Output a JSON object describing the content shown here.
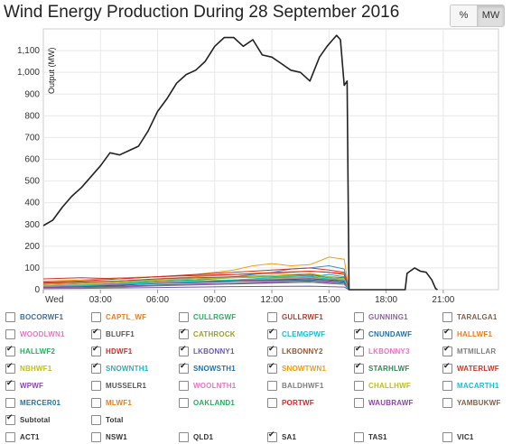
{
  "title": "Wind Energy Production During 28 September 2016",
  "toggle": {
    "percent_label": "%",
    "mw_label": "MW",
    "active": "MW"
  },
  "chart_data": {
    "type": "line",
    "ylabel": "Output (MW)",
    "y_ticks": [
      "0",
      "100",
      "200",
      "300",
      "400",
      "500",
      "600",
      "700",
      "800",
      "900",
      "1,000",
      "1,100"
    ],
    "x_ticks": [
      "Wed",
      "03:00",
      "06:00",
      "09:00",
      "12:00",
      "15:00",
      "18:00",
      "21:00"
    ],
    "x_unit": "hours since 00:00",
    "xlim": [
      0,
      23.9
    ],
    "ylim": [
      0,
      1200
    ],
    "grid": true,
    "series": [
      {
        "name": "Subtotal",
        "color": "#222222",
        "x": [
          0,
          0.5,
          1,
          1.5,
          2,
          2.5,
          3,
          3.5,
          4,
          4.5,
          5,
          5.5,
          6,
          6.5,
          7,
          7.5,
          8,
          8.5,
          9,
          9.5,
          10,
          10.5,
          11,
          11.5,
          12,
          12.5,
          13,
          13.5,
          14,
          14.5,
          14.9,
          15.2,
          15.4,
          15.6,
          15.8,
          15.95,
          16.05,
          19.0,
          19.1,
          19.5,
          19.8,
          20.1,
          20.4,
          20.6,
          20.7
        ],
        "y": [
          295,
          320,
          380,
          430,
          470,
          520,
          570,
          630,
          620,
          640,
          660,
          730,
          820,
          880,
          950,
          990,
          1010,
          1050,
          1120,
          1160,
          1160,
          1120,
          1150,
          1080,
          1070,
          1040,
          1010,
          1000,
          960,
          1070,
          1120,
          1150,
          1170,
          1150,
          940,
          960,
          0,
          0,
          75,
          100,
          85,
          80,
          45,
          5,
          0
        ]
      },
      {
        "name": "SNOWTWN1",
        "color": "#f39c12",
        "x": [
          0,
          2,
          4,
          6,
          8,
          9,
          10,
          11,
          12,
          13,
          14,
          15,
          15.8,
          16.05
        ],
        "y": [
          40,
          45,
          55,
          60,
          70,
          80,
          90,
          110,
          120,
          110,
          115,
          150,
          140,
          0
        ]
      },
      {
        "name": "SNOWSTH1",
        "color": "#3a8fd4",
        "x": [
          0,
          2,
          4,
          6,
          8,
          10,
          12,
          13,
          14,
          15,
          15.8,
          16.05
        ],
        "y": [
          30,
          35,
          40,
          45,
          50,
          60,
          80,
          95,
          100,
          110,
          95,
          0
        ]
      },
      {
        "name": "SNOWNTH1",
        "color": "#1ab3c5",
        "x": [
          0,
          2,
          4,
          6,
          8,
          10,
          12,
          14,
          15,
          15.8,
          16.05
        ],
        "y": [
          20,
          25,
          30,
          35,
          40,
          45,
          55,
          60,
          70,
          60,
          0
        ]
      },
      {
        "name": "WATERLWF",
        "color": "#c0392b",
        "x": [
          0,
          2,
          4,
          6,
          8,
          10,
          12,
          14,
          15,
          15.8,
          16.05
        ],
        "y": [
          50,
          55,
          50,
          60,
          70,
          80,
          90,
          100,
          90,
          80,
          0
        ]
      },
      {
        "name": "HALLWF1",
        "color": "#e67e22",
        "x": [
          0,
          2,
          4,
          6,
          8,
          10,
          12,
          14,
          15,
          15.8,
          16.05
        ],
        "y": [
          25,
          30,
          40,
          50,
          60,
          70,
          80,
          85,
          80,
          75,
          0
        ]
      },
      {
        "name": "HALLWF2",
        "color": "#27ae60",
        "x": [
          0,
          2,
          4,
          6,
          8,
          10,
          12,
          14,
          15,
          15.8,
          16.05
        ],
        "y": [
          20,
          25,
          30,
          40,
          45,
          55,
          60,
          65,
          55,
          50,
          0
        ]
      },
      {
        "name": "CATHROCK",
        "color": "#b5a03a",
        "x": [
          0,
          2,
          4,
          6,
          8,
          10,
          12,
          14,
          15,
          15.8,
          16.05
        ],
        "y": [
          15,
          20,
          25,
          35,
          40,
          45,
          50,
          55,
          50,
          40,
          0
        ]
      },
      {
        "name": "HDWF1",
        "color": "#d62728",
        "x": [
          0,
          2,
          4,
          6,
          8,
          10,
          12,
          14,
          15,
          15.8,
          16.05
        ],
        "y": [
          35,
          40,
          50,
          60,
          65,
          70,
          75,
          85,
          80,
          70,
          0
        ]
      },
      {
        "name": "CNUNDAWF",
        "color": "#2471a3",
        "x": [
          0,
          2,
          4,
          6,
          8,
          10,
          12,
          14,
          15,
          15.8,
          16.05
        ],
        "y": [
          15,
          18,
          22,
          28,
          32,
          38,
          42,
          45,
          40,
          35,
          0
        ]
      },
      {
        "name": "LKBONNY2",
        "color": "#8e5a3c",
        "x": [
          0,
          2,
          4,
          6,
          8,
          10,
          12,
          14,
          15,
          15.8,
          16.05
        ],
        "y": [
          30,
          35,
          40,
          50,
          55,
          60,
          65,
          70,
          60,
          55,
          0
        ]
      },
      {
        "name": "LKBONNY3",
        "color": "#e377c2",
        "x": [
          0,
          2,
          4,
          6,
          8,
          10,
          12,
          14,
          15,
          15.8,
          16.05
        ],
        "y": [
          20,
          22,
          28,
          32,
          38,
          42,
          48,
          52,
          45,
          40,
          0
        ]
      },
      {
        "name": "LKBONNY1",
        "color": "#6c5ca8",
        "x": [
          0,
          2,
          4,
          6,
          8,
          10,
          12,
          14,
          15,
          15.8,
          16.05
        ],
        "y": [
          5,
          6,
          8,
          10,
          12,
          14,
          15,
          16,
          14,
          12,
          0
        ]
      },
      {
        "name": "STARHLWF",
        "color": "#2e8b57",
        "x": [
          0,
          2,
          4,
          6,
          8,
          10,
          12,
          14,
          15,
          15.8,
          16.05
        ],
        "y": [
          10,
          12,
          15,
          20,
          25,
          28,
          32,
          35,
          30,
          25,
          0
        ]
      },
      {
        "name": "BLUFF1",
        "color": "#555555",
        "x": [
          0,
          2,
          4,
          6,
          8,
          10,
          12,
          14,
          15,
          15.8,
          16.05
        ],
        "y": [
          10,
          15,
          20,
          30,
          35,
          40,
          45,
          50,
          45,
          40,
          0
        ]
      },
      {
        "name": "NBHWF1",
        "color": "#bcbd22",
        "x": [
          0,
          2,
          4,
          6,
          8,
          10,
          12,
          14,
          15,
          15.8,
          16.05
        ],
        "y": [
          20,
          25,
          35,
          45,
          50,
          55,
          65,
          75,
          60,
          50,
          0
        ]
      },
      {
        "name": "WPWF",
        "color": "#8e44ad",
        "x": [
          0,
          2,
          4,
          6,
          8,
          10,
          12,
          14,
          15,
          15.8,
          16.05
        ],
        "y": [
          10,
          12,
          16,
          22,
          26,
          30,
          36,
          40,
          35,
          30,
          0
        ]
      },
      {
        "name": "MTMILLAR",
        "color": "#7f7f7f",
        "x": [
          0,
          2,
          4,
          6,
          8,
          10,
          12,
          14,
          15,
          15.8,
          16.05
        ],
        "y": [
          5,
          8,
          12,
          18,
          22,
          26,
          30,
          34,
          28,
          25,
          0
        ]
      },
      {
        "name": "CLEMGPWF",
        "color": "#17becf",
        "x": [
          0,
          2,
          4,
          6,
          8,
          10,
          12,
          14,
          15,
          15.8,
          16.05
        ],
        "y": [
          15,
          18,
          25,
          30,
          36,
          45,
          55,
          60,
          50,
          45,
          0
        ]
      }
    ]
  },
  "legend_rows": [
    [
      {
        "label": "BOCORWF1",
        "color": "#3a6ea5",
        "checked": false
      },
      {
        "label": "CAPTL_WF",
        "color": "#e67e22",
        "checked": false
      },
      {
        "label": "CULLRGWF",
        "color": "#27ae60",
        "checked": false
      },
      {
        "label": "GULLRWF1",
        "color": "#c0392b",
        "checked": false
      },
      {
        "label": "GUNNING1",
        "color": "#9b59b6",
        "checked": false
      },
      {
        "label": "TARALGA1",
        "color": "#7f5f4f",
        "checked": false
      }
    ],
    [
      {
        "label": "WOODLWN1",
        "color": "#e377c2",
        "checked": false
      },
      {
        "label": "BLUFF1",
        "color": "#555555",
        "checked": true
      },
      {
        "label": "CATHROCK",
        "color": "#9aa31f",
        "checked": true
      },
      {
        "label": "CLEMGPWF",
        "color": "#17becf",
        "checked": true
      },
      {
        "label": "CNUNDAWF",
        "color": "#2471a3",
        "checked": true
      },
      {
        "label": "HALLWF1",
        "color": "#e67e22",
        "checked": true
      }
    ],
    [
      {
        "label": "HALLWF2",
        "color": "#27ae60",
        "checked": true
      },
      {
        "label": "HDWF1",
        "color": "#d62728",
        "checked": true
      },
      {
        "label": "LKBONNY1",
        "color": "#6c5ca8",
        "checked": true
      },
      {
        "label": "LKBONNY2",
        "color": "#8e5a3c",
        "checked": true
      },
      {
        "label": "LKBONNY3",
        "color": "#e377c2",
        "checked": true
      },
      {
        "label": "MTMILLAR",
        "color": "#7f7f7f",
        "checked": true
      }
    ],
    [
      {
        "label": "NBHWF1",
        "color": "#bcbd22",
        "checked": true
      },
      {
        "label": "SNOWNTH1",
        "color": "#1ab3c5",
        "checked": true
      },
      {
        "label": "SNOWSTH1",
        "color": "#2471a3",
        "checked": true
      },
      {
        "label": "SNOWTWN1",
        "color": "#f39c12",
        "checked": true
      },
      {
        "label": "STARHLWF",
        "color": "#2e8b57",
        "checked": true
      },
      {
        "label": "WATERLWF",
        "color": "#c0392b",
        "checked": true
      }
    ],
    [
      {
        "label": "WPWF",
        "color": "#8e44ad",
        "checked": true
      },
      {
        "label": "MUSSELR1",
        "color": "#555555",
        "checked": false
      },
      {
        "label": "WOOLNTH1",
        "color": "#e377c2",
        "checked": false
      },
      {
        "label": "BALDHWF1",
        "color": "#7f7f7f",
        "checked": false
      },
      {
        "label": "CHALLHWF",
        "color": "#bcbd22",
        "checked": false
      },
      {
        "label": "MACARTH1",
        "color": "#17becf",
        "checked": false
      }
    ],
    [
      {
        "label": "MERCER01",
        "color": "#2471a3",
        "checked": false
      },
      {
        "label": "MLWF1",
        "color": "#e67e22",
        "checked": false
      },
      {
        "label": "OAKLAND1",
        "color": "#27ae60",
        "checked": false
      },
      {
        "label": "PORTWF",
        "color": "#d62728",
        "checked": false
      },
      {
        "label": "WAUBRAWF",
        "color": "#8e44ad",
        "checked": false
      },
      {
        "label": "YAMBUKWF",
        "color": "#7f5f4f",
        "checked": false
      }
    ],
    [
      {
        "label": "Subtotal",
        "color": "#333333",
        "checked": true
      },
      {
        "label": "Total",
        "color": "#333333",
        "checked": false
      }
    ],
    [
      {
        "label": "ACT1",
        "color": "#333333",
        "checked": false
      },
      {
        "label": "NSW1",
        "color": "#333333",
        "checked": false
      },
      {
        "label": "QLD1",
        "color": "#333333",
        "checked": false
      },
      {
        "label": "SA1",
        "color": "#333333",
        "checked": true
      },
      {
        "label": "TAS1",
        "color": "#333333",
        "checked": false
      },
      {
        "label": "VIC1",
        "color": "#333333",
        "checked": false
      }
    ]
  ]
}
